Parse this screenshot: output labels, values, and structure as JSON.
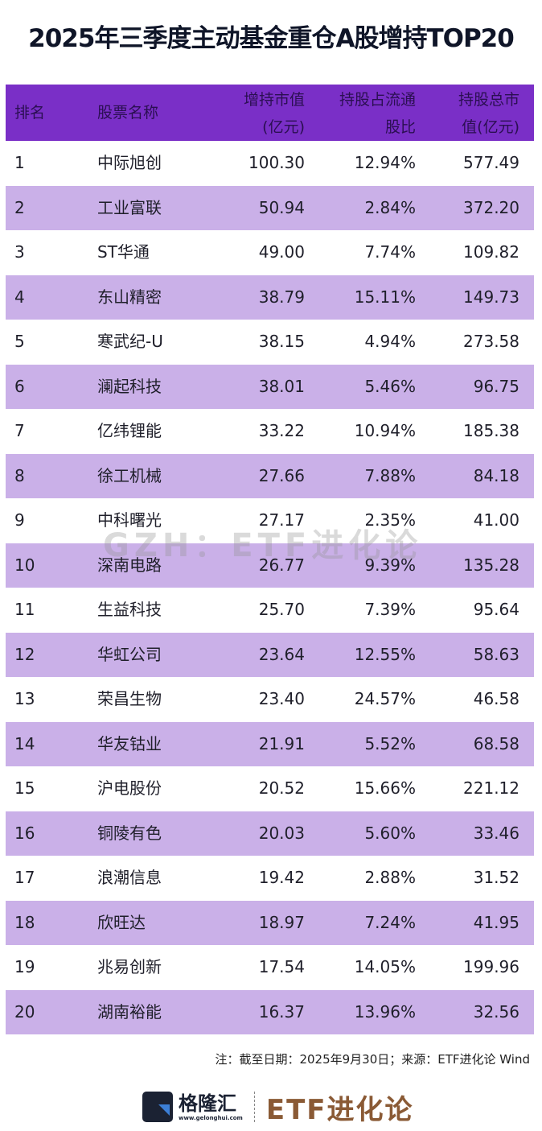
{
  "title": "2025年三季度主动基金重仓A股增持TOP20",
  "table": {
    "headers": {
      "rank": "排名",
      "name": "股票名称",
      "inc_line1": "增持市值",
      "inc_line2": "(亿元)",
      "pct_line1": "持股占流通",
      "pct_line2": "股比",
      "tot_line1": "持股总市",
      "tot_line2": "值(亿元)"
    },
    "rows": [
      {
        "rank": "1",
        "name": "中际旭创",
        "inc": "100.30",
        "pct": "12.94%",
        "tot": "577.49"
      },
      {
        "rank": "2",
        "name": "工业富联",
        "inc": "50.94",
        "pct": "2.84%",
        "tot": "372.20"
      },
      {
        "rank": "3",
        "name": "ST华通",
        "inc": "49.00",
        "pct": "7.74%",
        "tot": "109.82"
      },
      {
        "rank": "4",
        "name": "东山精密",
        "inc": "38.79",
        "pct": "15.11%",
        "tot": "149.73"
      },
      {
        "rank": "5",
        "name": "寒武纪-U",
        "inc": "38.15",
        "pct": "4.94%",
        "tot": "273.58"
      },
      {
        "rank": "6",
        "name": "澜起科技",
        "inc": "38.01",
        "pct": "5.46%",
        "tot": "96.75"
      },
      {
        "rank": "7",
        "name": "亿纬锂能",
        "inc": "33.22",
        "pct": "10.94%",
        "tot": "185.38"
      },
      {
        "rank": "8",
        "name": "徐工机械",
        "inc": "27.66",
        "pct": "7.88%",
        "tot": "84.18"
      },
      {
        "rank": "9",
        "name": "中科曙光",
        "inc": "27.17",
        "pct": "2.35%",
        "tot": "41.00"
      },
      {
        "rank": "10",
        "name": "深南电路",
        "inc": "26.77",
        "pct": "9.39%",
        "tot": "135.28"
      },
      {
        "rank": "11",
        "name": "生益科技",
        "inc": "25.70",
        "pct": "7.39%",
        "tot": "95.64"
      },
      {
        "rank": "12",
        "name": "华虹公司",
        "inc": "23.64",
        "pct": "12.55%",
        "tot": "58.63"
      },
      {
        "rank": "13",
        "name": "荣昌生物",
        "inc": "23.40",
        "pct": "24.57%",
        "tot": "46.58"
      },
      {
        "rank": "14",
        "name": "华友钴业",
        "inc": "21.91",
        "pct": "5.52%",
        "tot": "68.58"
      },
      {
        "rank": "15",
        "name": "沪电股份",
        "inc": "20.52",
        "pct": "15.66%",
        "tot": "221.12"
      },
      {
        "rank": "16",
        "name": "铜陵有色",
        "inc": "20.03",
        "pct": "5.60%",
        "tot": "33.46"
      },
      {
        "rank": "17",
        "name": "浪潮信息",
        "inc": "19.42",
        "pct": "2.88%",
        "tot": "31.52"
      },
      {
        "rank": "18",
        "name": "欣旺达",
        "inc": "18.97",
        "pct": "7.24%",
        "tot": "41.95"
      },
      {
        "rank": "19",
        "name": "兆易创新",
        "inc": "17.54",
        "pct": "14.05%",
        "tot": "199.96"
      },
      {
        "rank": "20",
        "name": "湖南裕能",
        "inc": "16.37",
        "pct": "13.96%",
        "tot": "32.56"
      }
    ]
  },
  "watermark": "GZH：ETF进化论",
  "note": "注：截至日期：2025年9月30日；来源：ETF进化论 Wind",
  "footer": {
    "brand_cn": "格隆汇",
    "brand_url": "www.gelonghui.com",
    "etf_brand": "ETF进化论"
  },
  "colors": {
    "header_bg": "#7a2fc7",
    "alt_row_bg": "#cab0e8",
    "title": "#0f1528",
    "etf_brand": "#8a5a35"
  },
  "chart_data": {
    "type": "table",
    "title": "2025年三季度主动基金重仓A股增持TOP20",
    "columns": [
      "排名",
      "股票名称",
      "增持市值(亿元)",
      "持股占流通股比",
      "持股总市值(亿元)"
    ],
    "rows": [
      [
        1,
        "中际旭创",
        100.3,
        "12.94%",
        577.49
      ],
      [
        2,
        "工业富联",
        50.94,
        "2.84%",
        372.2
      ],
      [
        3,
        "ST华通",
        49.0,
        "7.74%",
        109.82
      ],
      [
        4,
        "东山精密",
        38.79,
        "15.11%",
        149.73
      ],
      [
        5,
        "寒武纪-U",
        38.15,
        "4.94%",
        273.58
      ],
      [
        6,
        "澜起科技",
        38.01,
        "5.46%",
        96.75
      ],
      [
        7,
        "亿纬锂能",
        33.22,
        "10.94%",
        185.38
      ],
      [
        8,
        "徐工机械",
        27.66,
        "7.88%",
        84.18
      ],
      [
        9,
        "中科曙光",
        27.17,
        "2.35%",
        41.0
      ],
      [
        10,
        "深南电路",
        26.77,
        "9.39%",
        135.28
      ],
      [
        11,
        "生益科技",
        25.7,
        "7.39%",
        95.64
      ],
      [
        12,
        "华虹公司",
        23.64,
        "12.55%",
        58.63
      ],
      [
        13,
        "荣昌生物",
        23.4,
        "24.57%",
        46.58
      ],
      [
        14,
        "华友钴业",
        21.91,
        "5.52%",
        68.58
      ],
      [
        15,
        "沪电股份",
        20.52,
        "15.66%",
        221.12
      ],
      [
        16,
        "铜陵有色",
        20.03,
        "5.60%",
        33.46
      ],
      [
        17,
        "浪潮信息",
        19.42,
        "2.88%",
        31.52
      ],
      [
        18,
        "欣旺达",
        18.97,
        "7.24%",
        41.95
      ],
      [
        19,
        "兆易创新",
        17.54,
        "14.05%",
        199.96
      ],
      [
        20,
        "湖南裕能",
        16.37,
        "13.96%",
        32.56
      ]
    ],
    "note": "注：截至日期：2025年9月30日；来源：ETF进化论 Wind"
  }
}
